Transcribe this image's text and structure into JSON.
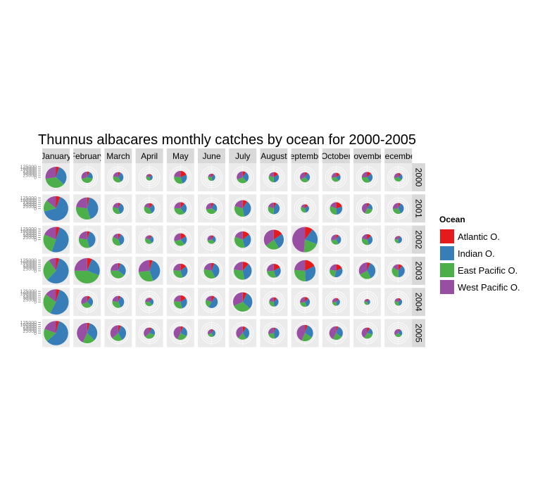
{
  "chart_data": {
    "type": "pie",
    "title": "Thunnus albacares monthly catches by ocean for 2000-2005",
    "columns": [
      "January",
      "February",
      "March",
      "April",
      "May",
      "June",
      "July",
      "August",
      "September",
      "October",
      "November",
      "December"
    ],
    "rows": [
      "2000",
      "2001",
      "2002",
      "2003",
      "2004",
      "2005"
    ],
    "radial_tick_labels": [
      "125000",
      "100000",
      "75000",
      "50000",
      "25000",
      "0"
    ],
    "grid": true,
    "legend_position": "right",
    "legend": {
      "title": "Ocean",
      "entries": [
        {
          "name": "Atlantic O.",
          "color": "#E41A1C"
        },
        {
          "name": "Indian O.",
          "color": "#377EB8"
        },
        {
          "name": "East Pacific O.",
          "color": "#4DAF4A"
        },
        {
          "name": "West Pacific O.",
          "color": "#984EA3"
        }
      ]
    },
    "series_order": [
      "Atlantic O.",
      "Indian O.",
      "East Pacific O.",
      "West Pacific O."
    ],
    "values": {
      "2000": [
        [
          6000,
          40000,
          45000,
          34000
        ],
        [
          4500,
          15000,
          28000,
          20000
        ],
        [
          4000,
          21000,
          22000,
          14000
        ],
        [
          4000,
          13000,
          14000,
          8000
        ],
        [
          14000,
          20000,
          24000,
          18000
        ],
        [
          4000,
          16000,
          14000,
          9000
        ],
        [
          6000,
          21000,
          22000,
          22000
        ],
        [
          9000,
          21000,
          18000,
          12000
        ],
        [
          5000,
          17000,
          18000,
          19000
        ],
        [
          8000,
          13000,
          18000,
          14000
        ],
        [
          8000,
          19000,
          21000,
          16000
        ],
        [
          5000,
          13000,
          18000,
          14000
        ]
      ],
      "2001": [
        [
          8000,
          95000,
          22000,
          20000
        ],
        [
          4000,
          55000,
          42000,
          30000
        ],
        [
          4000,
          26000,
          22000,
          14000
        ],
        [
          7000,
          20000,
          24000,
          12000
        ],
        [
          8000,
          21000,
          27000,
          18000
        ],
        [
          4000,
          18000,
          25000,
          18000
        ],
        [
          9000,
          37000,
          32000,
          20000
        ],
        [
          5000,
          30000,
          20000,
          14000
        ],
        [
          6000,
          17000,
          17000,
          9000
        ],
        [
          15000,
          21000,
          24000,
          14000
        ],
        [
          4000,
          14000,
          18000,
          27000
        ],
        [
          4000,
          24000,
          20000,
          17000
        ]
      ],
      "2002": [
        [
          7000,
          78000,
          40000,
          28000
        ],
        [
          5000,
          40000,
          32000,
          22000
        ],
        [
          5000,
          26000,
          28000,
          12000
        ],
        [
          4000,
          16000,
          21000,
          10000
        ],
        [
          12000,
          17000,
          24000,
          22000
        ],
        [
          4000,
          14000,
          18000,
          14000
        ],
        [
          14000,
          31000,
          34000,
          19000
        ],
        [
          18000,
          31000,
          27000,
          42000
        ],
        [
          20000,
          40000,
          40000,
          95000
        ],
        [
          5000,
          20000,
          18000,
          16000
        ],
        [
          8000,
          21000,
          21000,
          14000
        ],
        [
          3000,
          19000,
          12000,
          10000
        ]
      ],
      "2003": [
        [
          8000,
          110000,
          54000,
          18000
        ],
        [
          12000,
          47000,
          85000,
          48000
        ],
        [
          4000,
          28000,
          36000,
          22000
        ],
        [
          6000,
          50000,
          37000,
          34000
        ],
        [
          12000,
          26000,
          26000,
          20000
        ],
        [
          5000,
          34000,
          33000,
          20000
        ],
        [
          12000,
          38000,
          32000,
          24000
        ],
        [
          14000,
          23000,
          24000,
          21000
        ],
        [
          22000,
          40000,
          34000,
          30000
        ],
        [
          14000,
          27000,
          18000,
          17000
        ],
        [
          6000,
          36000,
          24000,
          32000
        ],
        [
          8000,
          30000,
          26000,
          12000
        ]
      ],
      "2004": [
        [
          10000,
          115000,
          60000,
          32000
        ],
        [
          6000,
          20000,
          22000,
          22000
        ],
        [
          4000,
          27000,
          24000,
          16000
        ],
        [
          4000,
          15000,
          19000,
          12000
        ],
        [
          12000,
          24000,
          24000,
          18000
        ],
        [
          6000,
          36000,
          16000,
          14000
        ],
        [
          8000,
          34000,
          36000,
          36000
        ],
        [
          6000,
          21000,
          16000,
          12000
        ],
        [
          7000,
          19000,
          16000,
          16000
        ],
        [
          5000,
          16000,
          13000,
          12000
        ],
        [
          3000,
          12000,
          12000,
          8000
        ],
        [
          5000,
          16000,
          14000,
          10000
        ]
      ],
      "2005": [
        [
          6000,
          85000,
          25000,
          28000
        ],
        [
          5000,
          40000,
          24000,
          52000
        ],
        [
          5000,
          34000,
          20000,
          34000
        ],
        [
          4000,
          16000,
          22000,
          24000
        ],
        [
          5000,
          21000,
          20000,
          34000
        ],
        [
          3000,
          17000,
          12000,
          14000
        ],
        [
          6000,
          26000,
          16000,
          30000
        ],
        [
          3000,
          28000,
          16000,
          18000
        ],
        [
          5000,
          28000,
          22000,
          42000
        ],
        [
          4000,
          24000,
          18000,
          34000
        ],
        [
          5000,
          14000,
          20000,
          27000
        ],
        [
          3000,
          14000,
          14000,
          16000
        ]
      ]
    }
  }
}
